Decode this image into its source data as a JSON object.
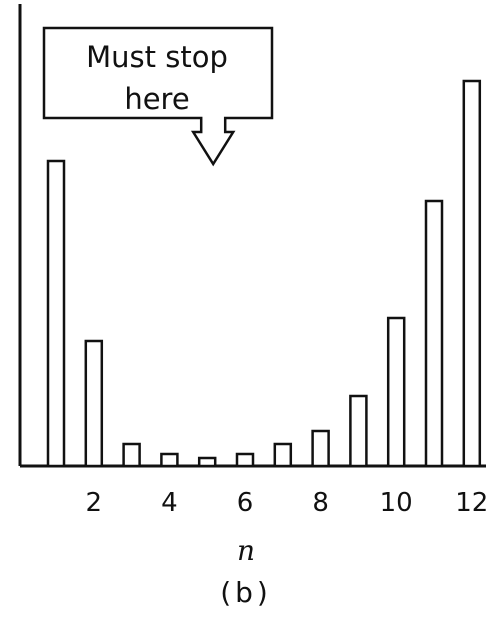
{
  "chart_data": {
    "type": "bar",
    "x": [
      1,
      2,
      3,
      4,
      5,
      6,
      7,
      8,
      9,
      10,
      11,
      12
    ],
    "values": [
      305,
      125,
      22,
      12,
      8,
      12,
      22,
      35,
      70,
      148,
      265,
      385
    ],
    "xticks": [
      "2",
      "4",
      "6",
      "8",
      "10",
      "12"
    ],
    "xlabel": "n",
    "ylabel": "",
    "ylim": [
      0,
      400
    ],
    "grid": false,
    "annotation": {
      "text_line1": "Must stop",
      "text_line2": "here",
      "points_to_x": 5
    },
    "panel_label": "(b)"
  },
  "colors": {
    "ink": "#111111",
    "bar_fill": "#ffffff",
    "background": "#ffffff"
  }
}
